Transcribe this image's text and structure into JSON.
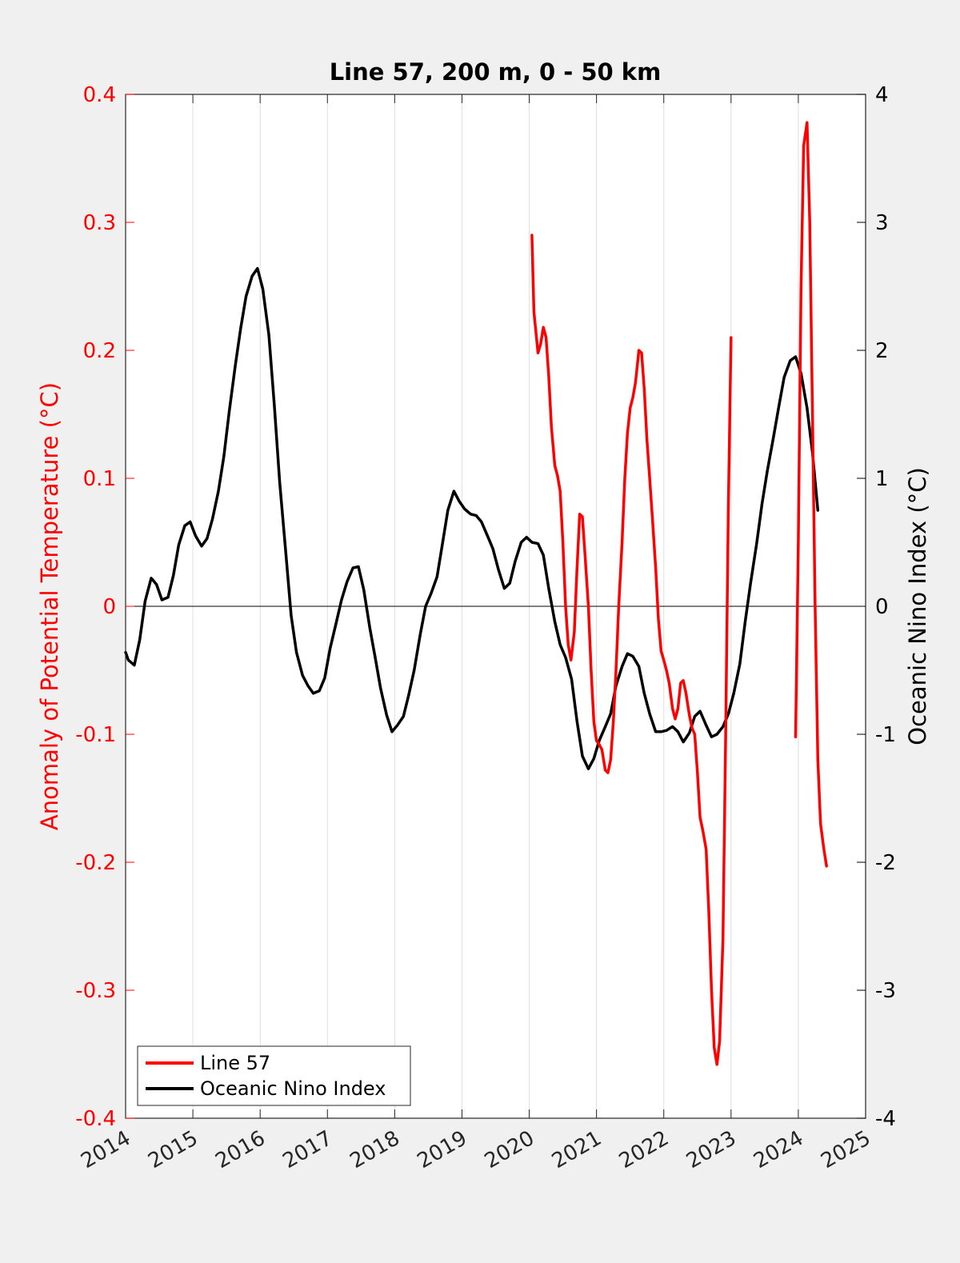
{
  "chart_data": {
    "type": "line",
    "title": "Line 57, 200 m, 0 - 50 km",
    "xlabel": "",
    "ylabel_left": "Anomaly of Potential Temperature (°C)",
    "ylabel_right": "Oceanic Nino Index (°C)",
    "xlim": [
      2014,
      2025
    ],
    "ylim_left": [
      -0.4,
      0.4
    ],
    "ylim_right": [
      -4,
      4
    ],
    "x_ticks": [
      "2014",
      "2015",
      "2016",
      "2017",
      "2018",
      "2019",
      "2020",
      "2021",
      "2022",
      "2023",
      "2024",
      "2025"
    ],
    "y_ticks_left": [
      "-0.4",
      "-0.3",
      "-0.2",
      "-0.1",
      "0",
      "0.1",
      "0.2",
      "0.3",
      "0.4"
    ],
    "y_ticks_right": [
      "-4",
      "-3",
      "-2",
      "-1",
      "0",
      "1",
      "2",
      "3",
      "4"
    ],
    "vertical_grid": true,
    "zero_line": true,
    "legend_position": "bottom-left",
    "colors": {
      "line57": "#ff0000",
      "oni": "#000000",
      "left_axis": "#ff0000",
      "right_axis": "#000000"
    },
    "series": [
      {
        "name": "Line 57",
        "axis": "left",
        "segments": [
          [
            [
              2020.04,
              0.29
            ],
            [
              2020.07,
              0.23
            ],
            [
              2020.13,
              0.198
            ],
            [
              2020.17,
              0.205
            ],
            [
              2020.21,
              0.218
            ],
            [
              2020.25,
              0.21
            ],
            [
              2020.29,
              0.18
            ],
            [
              2020.33,
              0.14
            ],
            [
              2020.38,
              0.11
            ],
            [
              2020.42,
              0.102
            ],
            [
              2020.46,
              0.09
            ],
            [
              2020.5,
              0.05
            ],
            [
              2020.54,
              0.0
            ],
            [
              2020.58,
              -0.03
            ],
            [
              2020.62,
              -0.042
            ],
            [
              2020.67,
              -0.02
            ],
            [
              2020.71,
              0.03
            ],
            [
              2020.75,
              0.072
            ],
            [
              2020.79,
              0.07
            ],
            [
              2020.83,
              0.04
            ],
            [
              2020.88,
              0.0
            ],
            [
              2020.92,
              -0.05
            ],
            [
              2020.96,
              -0.09
            ],
            [
              2021.0,
              -0.105
            ],
            [
              2021.04,
              -0.108
            ],
            [
              2021.08,
              -0.112
            ],
            [
              2021.13,
              -0.128
            ],
            [
              2021.17,
              -0.13
            ],
            [
              2021.21,
              -0.12
            ],
            [
              2021.25,
              -0.09
            ],
            [
              2021.29,
              -0.05
            ],
            [
              2021.33,
              0.0
            ],
            [
              2021.38,
              0.05
            ],
            [
              2021.42,
              0.1
            ],
            [
              2021.46,
              0.135
            ],
            [
              2021.5,
              0.155
            ],
            [
              2021.54,
              0.163
            ],
            [
              2021.58,
              0.175
            ],
            [
              2021.63,
              0.2
            ],
            [
              2021.67,
              0.198
            ],
            [
              2021.71,
              0.17
            ],
            [
              2021.75,
              0.13
            ],
            [
              2021.79,
              0.1
            ],
            [
              2021.83,
              0.07
            ],
            [
              2021.88,
              0.03
            ],
            [
              2021.92,
              -0.01
            ],
            [
              2021.96,
              -0.035
            ],
            [
              2022.0,
              -0.042
            ],
            [
              2022.04,
              -0.05
            ],
            [
              2022.08,
              -0.06
            ],
            [
              2022.13,
              -0.08
            ],
            [
              2022.17,
              -0.088
            ],
            [
              2022.21,
              -0.08
            ],
            [
              2022.25,
              -0.06
            ],
            [
              2022.29,
              -0.058
            ],
            [
              2022.33,
              -0.068
            ],
            [
              2022.38,
              -0.085
            ],
            [
              2022.42,
              -0.095
            ],
            [
              2022.46,
              -0.1
            ],
            [
              2022.5,
              -0.13
            ],
            [
              2022.54,
              -0.165
            ],
            [
              2022.58,
              -0.175
            ],
            [
              2022.63,
              -0.19
            ],
            [
              2022.67,
              -0.24
            ],
            [
              2022.71,
              -0.3
            ],
            [
              2022.75,
              -0.345
            ],
            [
              2022.79,
              -0.358
            ],
            [
              2022.83,
              -0.34
            ],
            [
              2022.88,
              -0.26
            ],
            [
              2022.92,
              -0.1
            ],
            [
              2022.96,
              0.08
            ],
            [
              2023.0,
              0.21
            ]
          ],
          [
            [
              2023.96,
              -0.102
            ],
            [
              2024.0,
              0.05
            ],
            [
              2024.04,
              0.25
            ],
            [
              2024.08,
              0.36
            ],
            [
              2024.13,
              0.378
            ],
            [
              2024.17,
              0.3
            ],
            [
              2024.21,
              0.15
            ],
            [
              2024.25,
              0.0
            ],
            [
              2024.29,
              -0.12
            ],
            [
              2024.33,
              -0.17
            ],
            [
              2024.38,
              -0.19
            ],
            [
              2024.42,
              -0.203
            ]
          ]
        ]
      },
      {
        "name": "Oceanic Nino Index",
        "axis": "right",
        "segments": [
          [
            [
              2014.0,
              -0.36
            ],
            [
              2014.04,
              -0.42
            ],
            [
              2014.13,
              -0.46
            ],
            [
              2014.21,
              -0.26
            ],
            [
              2014.29,
              0.04
            ],
            [
              2014.38,
              0.22
            ],
            [
              2014.46,
              0.17
            ],
            [
              2014.54,
              0.05
            ],
            [
              2014.63,
              0.07
            ],
            [
              2014.71,
              0.24
            ],
            [
              2014.79,
              0.48
            ],
            [
              2014.88,
              0.63
            ],
            [
              2014.96,
              0.66
            ],
            [
              2015.04,
              0.55
            ],
            [
              2015.13,
              0.47
            ],
            [
              2015.21,
              0.53
            ],
            [
              2015.29,
              0.68
            ],
            [
              2015.38,
              0.9
            ],
            [
              2015.46,
              1.17
            ],
            [
              2015.54,
              1.52
            ],
            [
              2015.63,
              1.88
            ],
            [
              2015.71,
              2.17
            ],
            [
              2015.79,
              2.42
            ],
            [
              2015.88,
              2.58
            ],
            [
              2015.96,
              2.64
            ],
            [
              2016.04,
              2.48
            ],
            [
              2016.13,
              2.12
            ],
            [
              2016.21,
              1.58
            ],
            [
              2016.29,
              0.97
            ],
            [
              2016.38,
              0.43
            ],
            [
              2016.46,
              -0.07
            ],
            [
              2016.54,
              -0.36
            ],
            [
              2016.63,
              -0.54
            ],
            [
              2016.71,
              -0.62
            ],
            [
              2016.79,
              -0.68
            ],
            [
              2016.88,
              -0.66
            ],
            [
              2016.96,
              -0.56
            ],
            [
              2017.04,
              -0.33
            ],
            [
              2017.13,
              -0.13
            ],
            [
              2017.21,
              0.05
            ],
            [
              2017.29,
              0.19
            ],
            [
              2017.38,
              0.3
            ],
            [
              2017.46,
              0.31
            ],
            [
              2017.54,
              0.13
            ],
            [
              2017.63,
              -0.17
            ],
            [
              2017.71,
              -0.4
            ],
            [
              2017.79,
              -0.64
            ],
            [
              2017.88,
              -0.85
            ],
            [
              2017.96,
              -0.98
            ],
            [
              2018.04,
              -0.93
            ],
            [
              2018.13,
              -0.86
            ],
            [
              2018.21,
              -0.69
            ],
            [
              2018.29,
              -0.5
            ],
            [
              2018.38,
              -0.22
            ],
            [
              2018.46,
              0.0
            ],
            [
              2018.54,
              0.1
            ],
            [
              2018.63,
              0.23
            ],
            [
              2018.71,
              0.49
            ],
            [
              2018.79,
              0.75
            ],
            [
              2018.88,
              0.9
            ],
            [
              2018.96,
              0.82
            ],
            [
              2019.04,
              0.76
            ],
            [
              2019.13,
              0.72
            ],
            [
              2019.21,
              0.71
            ],
            [
              2019.29,
              0.66
            ],
            [
              2019.38,
              0.55
            ],
            [
              2019.46,
              0.45
            ],
            [
              2019.54,
              0.29
            ],
            [
              2019.63,
              0.14
            ],
            [
              2019.71,
              0.18
            ],
            [
              2019.79,
              0.35
            ],
            [
              2019.88,
              0.5
            ],
            [
              2019.96,
              0.54
            ],
            [
              2020.04,
              0.5
            ],
            [
              2020.13,
              0.49
            ],
            [
              2020.21,
              0.4
            ],
            [
              2020.29,
              0.14
            ],
            [
              2020.38,
              -0.12
            ],
            [
              2020.46,
              -0.3
            ],
            [
              2020.54,
              -0.4
            ],
            [
              2020.63,
              -0.57
            ],
            [
              2020.71,
              -0.9
            ],
            [
              2020.79,
              -1.17
            ],
            [
              2020.88,
              -1.27
            ],
            [
              2020.96,
              -1.19
            ],
            [
              2021.04,
              -1.05
            ],
            [
              2021.13,
              -0.94
            ],
            [
              2021.21,
              -0.84
            ],
            [
              2021.29,
              -0.62
            ],
            [
              2021.38,
              -0.47
            ],
            [
              2021.46,
              -0.37
            ],
            [
              2021.54,
              -0.39
            ],
            [
              2021.63,
              -0.47
            ],
            [
              2021.71,
              -0.68
            ],
            [
              2021.79,
              -0.84
            ],
            [
              2021.88,
              -0.98
            ],
            [
              2021.96,
              -0.98
            ],
            [
              2022.04,
              -0.97
            ],
            [
              2022.13,
              -0.94
            ],
            [
              2022.21,
              -0.98
            ],
            [
              2022.29,
              -1.06
            ],
            [
              2022.38,
              -0.99
            ],
            [
              2022.46,
              -0.86
            ],
            [
              2022.54,
              -0.82
            ],
            [
              2022.63,
              -0.93
            ],
            [
              2022.71,
              -1.02
            ],
            [
              2022.79,
              -1.0
            ],
            [
              2022.88,
              -0.94
            ],
            [
              2022.96,
              -0.84
            ],
            [
              2023.04,
              -0.68
            ],
            [
              2023.13,
              -0.45
            ],
            [
              2023.21,
              -0.12
            ],
            [
              2023.29,
              0.18
            ],
            [
              2023.38,
              0.49
            ],
            [
              2023.46,
              0.8
            ],
            [
              2023.54,
              1.06
            ],
            [
              2023.63,
              1.32
            ],
            [
              2023.71,
              1.56
            ],
            [
              2023.79,
              1.79
            ],
            [
              2023.88,
              1.92
            ],
            [
              2023.96,
              1.95
            ],
            [
              2024.04,
              1.82
            ],
            [
              2024.13,
              1.55
            ],
            [
              2024.21,
              1.2
            ],
            [
              2024.29,
              0.75
            ]
          ]
        ]
      }
    ]
  }
}
